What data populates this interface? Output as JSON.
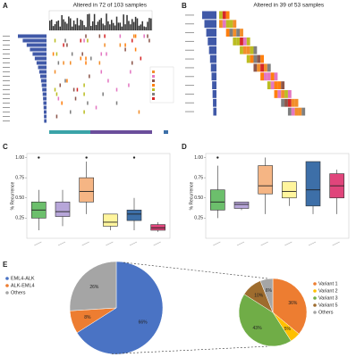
{
  "chart_data": [
    {
      "type": "oncoprint",
      "panel": "A",
      "title": "Altered in 72 of 103 samples"
    },
    {
      "type": "oncoprint",
      "panel": "B",
      "title": "Altered in 39 of 53 samples"
    },
    {
      "type": "boxplot",
      "panel": "C",
      "ylabel": "% Recurrence",
      "ylim": [
        0,
        1.05
      ],
      "yticks": [
        0.25,
        {
          "value": 0.5,
          "label": "0.50"
        },
        0.75,
        {
          "value": 1,
          "label": "1.00"
        }
      ],
      "boxes": [
        {
          "color": "#6cbf6c",
          "whislo": 0.1,
          "q1": 0.25,
          "med": 0.35,
          "q3": 0.45,
          "whishi": 0.6,
          "outliers": [
            1.0
          ]
        },
        {
          "color": "#b7a6d9",
          "whislo": 0.15,
          "q1": 0.27,
          "med": 0.33,
          "q3": 0.45,
          "whishi": 0.6,
          "outliers": []
        },
        {
          "color": "#f5b584",
          "whislo": 0.3,
          "q1": 0.45,
          "med": 0.58,
          "q3": 0.75,
          "whishi": 0.95,
          "outliers": [
            1.0
          ]
        },
        {
          "color": "#fff59d",
          "whislo": 0.1,
          "q1": 0.15,
          "med": 0.2,
          "q3": 0.3,
          "whishi": 0.3,
          "outliers": []
        },
        {
          "color": "#3d6fa8",
          "whislo": 0.1,
          "q1": 0.22,
          "med": 0.3,
          "q3": 0.35,
          "whishi": 0.5,
          "outliers": [
            1.0
          ]
        },
        {
          "color": "#e0457b",
          "whislo": 0.08,
          "q1": 0.1,
          "med": 0.13,
          "q3": 0.17,
          "whishi": 0.2,
          "outliers": []
        }
      ]
    },
    {
      "type": "boxplot",
      "panel": "D",
      "ylabel": "% Recurrence",
      "ylim": [
        0,
        1.05
      ],
      "yticks": [
        0.25,
        {
          "value": 0.5,
          "label": "0.50"
        },
        0.75,
        {
          "value": 1,
          "label": "1.00"
        }
      ],
      "boxes": [
        {
          "color": "#6cbf6c",
          "whislo": 0.25,
          "q1": 0.35,
          "med": 0.45,
          "q3": 0.6,
          "whishi": 0.9,
          "outliers": [
            1.0
          ]
        },
        {
          "color": "#b7a6d9",
          "whislo": 0.35,
          "q1": 0.37,
          "med": 0.42,
          "q3": 0.45,
          "whishi": 0.45,
          "outliers": []
        },
        {
          "color": "#f5b584",
          "whislo": 0.3,
          "q1": 0.55,
          "med": 0.65,
          "q3": 0.9,
          "whishi": 1.0,
          "outliers": []
        },
        {
          "color": "#fff59d",
          "whislo": 0.4,
          "q1": 0.5,
          "med": 0.58,
          "q3": 0.7,
          "whishi": 0.7,
          "outliers": []
        },
        {
          "color": "#3d6fa8",
          "whislo": 0.3,
          "q1": 0.4,
          "med": 0.6,
          "q3": 0.95,
          "whishi": 0.95,
          "outliers": []
        },
        {
          "color": "#e0457b",
          "whislo": 0.3,
          "q1": 0.5,
          "med": 0.65,
          "q3": 0.8,
          "whishi": 0.85,
          "outliers": []
        }
      ]
    },
    {
      "type": "pie",
      "panel": "E",
      "categories": [
        "EML4-ALK",
        "ALK-EML4",
        "Others"
      ],
      "values": [
        66,
        8,
        26
      ],
      "value_labels": [
        "66%",
        "8%",
        "26%"
      ],
      "colors": [
        "#4a73c4",
        "#ed7d31",
        "#a5a5a5"
      ]
    },
    {
      "type": "pie",
      "categories": [
        "Variant 1",
        "Variant 2",
        "Variant 3",
        "Variant 5",
        "Others"
      ],
      "values": [
        36,
        5,
        43,
        10,
        6
      ],
      "value_labels": [
        "36%",
        "5%",
        "43%",
        "10%",
        "6%"
      ],
      "colors": [
        "#ed7d31",
        "#ffc000",
        "#70ad47",
        "#9e6c2e",
        "#a5a5a5"
      ]
    }
  ]
}
